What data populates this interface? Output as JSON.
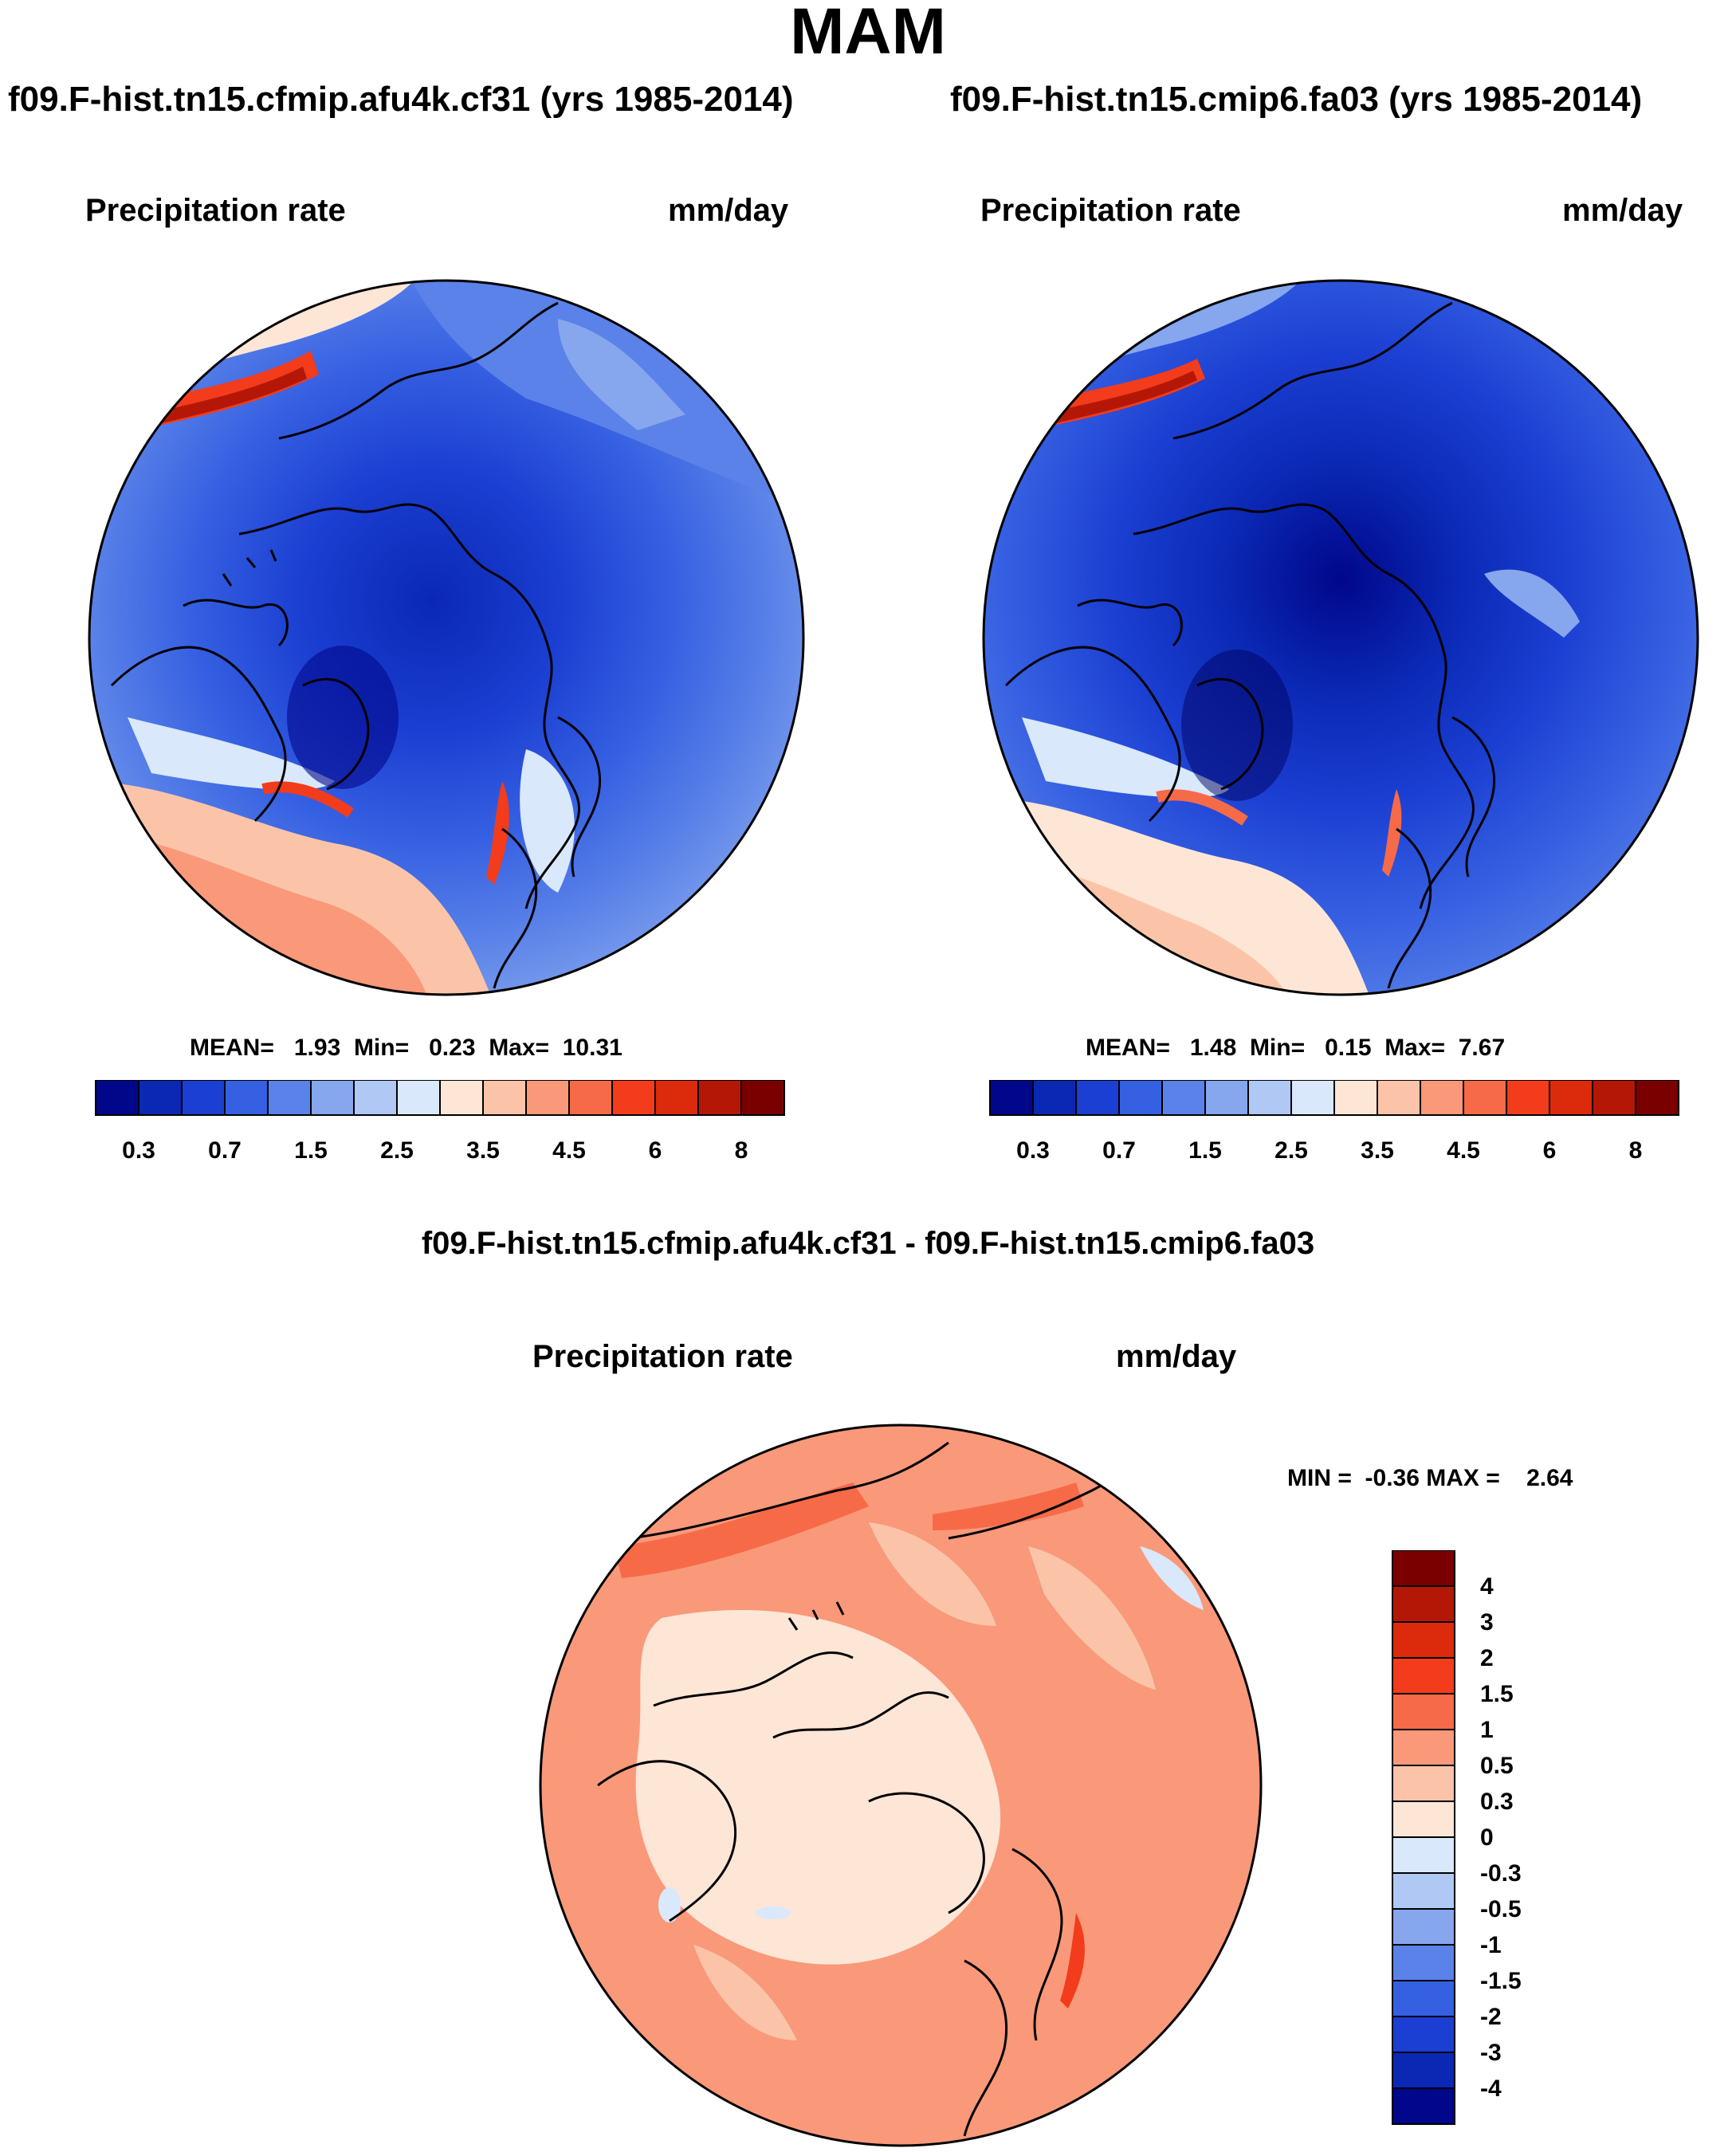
{
  "figure": {
    "title": "MAM",
    "panels": [
      {
        "case_title": "f09.F-hist.tn15.cfmip.afu4k.cf31 (yrs 1985-2014)",
        "variable": "Precipitation rate",
        "units": "mm/day",
        "mean_label": "MEAN=",
        "mean": "1.93",
        "min_label": "Min=",
        "min": "0.23",
        "max_label": "Max=",
        "max": "10.31"
      },
      {
        "case_title": "f09.F-hist.tn15.cmip6.fa03 (yrs 1985-2014)",
        "variable": "Precipitation rate",
        "units": "mm/day",
        "mean_label": "MEAN=",
        "mean": "1.48",
        "min_label": "Min=",
        "min": "0.15",
        "max_label": "Max=",
        "max": "7.67"
      }
    ],
    "diff": {
      "title": "f09.F-hist.tn15.cfmip.afu4k.cf31 - f09.F-hist.tn15.cmip6.fa03",
      "variable": "Precipitation rate",
      "units": "mm/day",
      "minmax": "MIN =  -0.36 MAX =    2.64"
    }
  },
  "chart_data": [
    {
      "type": "heatmap",
      "title": "f09.F-hist.tn15.cfmip.afu4k.cf31 (yrs 1985-2014)",
      "variable": "Precipitation rate",
      "units": "mm/day",
      "projection": "polar stereographic, north pole",
      "stats": {
        "mean": 1.93,
        "min": 0.23,
        "max": 10.31
      },
      "colorbar": {
        "orientation": "horizontal",
        "levels": [
          0.2,
          0.3,
          0.5,
          0.7,
          1,
          1.5,
          2,
          2.5,
          3,
          3.5,
          4,
          4.5,
          5,
          6,
          7,
          8
        ],
        "tick_labels": [
          "0.3",
          "0.7",
          "1.5",
          "2.5",
          "3.5",
          "4.5",
          "6",
          "8"
        ],
        "colors": [
          "#01078a",
          "#0a28b4",
          "#1b3fd2",
          "#3660e2",
          "#5a82e8",
          "#86a6ee",
          "#b0c9f4",
          "#d9e8fb",
          "#fde6d6",
          "#fbc4a8",
          "#f9997a",
          "#f76a48",
          "#f23c1b",
          "#dc2a0c",
          "#b51707",
          "#7a0000"
        ]
      }
    },
    {
      "type": "heatmap",
      "title": "f09.F-hist.tn15.cmip6.fa03 (yrs 1985-2014)",
      "variable": "Precipitation rate",
      "units": "mm/day",
      "projection": "polar stereographic, north pole",
      "stats": {
        "mean": 1.48,
        "min": 0.15,
        "max": 7.67
      },
      "colorbar": {
        "orientation": "horizontal",
        "levels": [
          0.2,
          0.3,
          0.5,
          0.7,
          1,
          1.5,
          2,
          2.5,
          3,
          3.5,
          4,
          4.5,
          5,
          6,
          7,
          8
        ],
        "tick_labels": [
          "0.3",
          "0.7",
          "1.5",
          "2.5",
          "3.5",
          "4.5",
          "6",
          "8"
        ],
        "colors": [
          "#01078a",
          "#0a28b4",
          "#1b3fd2",
          "#3660e2",
          "#5a82e8",
          "#86a6ee",
          "#b0c9f4",
          "#d9e8fb",
          "#fde6d6",
          "#fbc4a8",
          "#f9997a",
          "#f76a48",
          "#f23c1b",
          "#dc2a0c",
          "#b51707",
          "#7a0000"
        ]
      }
    },
    {
      "type": "heatmap",
      "title": "f09.F-hist.tn15.cfmip.afu4k.cf31 - f09.F-hist.tn15.cmip6.fa03",
      "variable": "Precipitation rate",
      "units": "mm/day",
      "projection": "polar stereographic, north pole",
      "stats": {
        "min": -0.36,
        "max": 2.64
      },
      "colorbar": {
        "orientation": "vertical",
        "tick_labels": [
          "4",
          "3",
          "2",
          "1.5",
          "1",
          "0.5",
          "0.3",
          "0",
          "-0.3",
          "-0.5",
          "-1",
          "-1.5",
          "-2",
          "-3",
          "-4"
        ],
        "colors": [
          "#7a0000",
          "#b51707",
          "#dc2a0c",
          "#f23c1b",
          "#f76a48",
          "#f9997a",
          "#fbc4a8",
          "#fde6d6",
          "#d9e8fb",
          "#b0c9f4",
          "#86a6ee",
          "#5a82e8",
          "#3660e2",
          "#1b3fd2",
          "#0a28b4",
          "#01078a"
        ]
      }
    }
  ]
}
